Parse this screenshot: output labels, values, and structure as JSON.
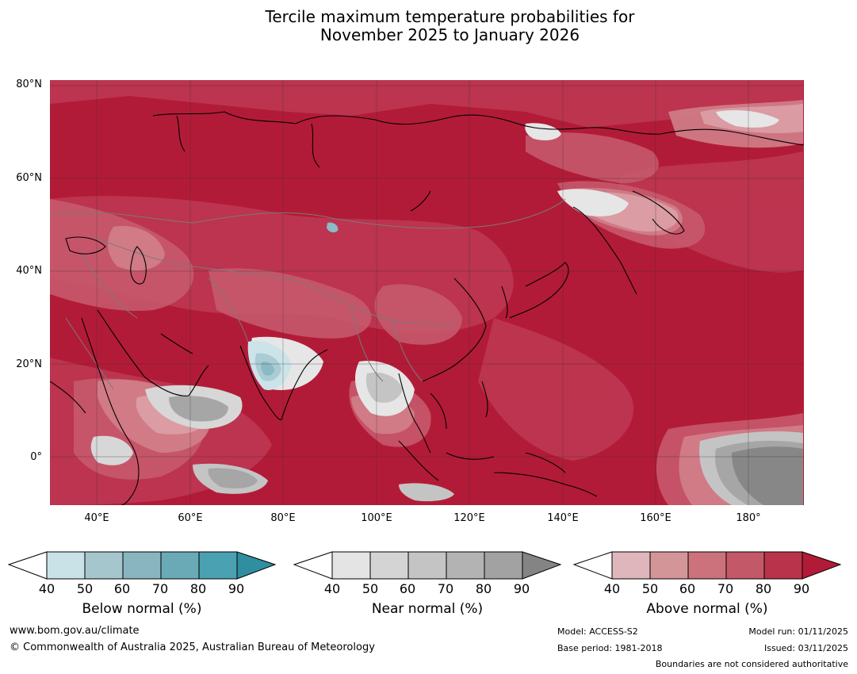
{
  "title": {
    "line1": "Tercile maximum temperature probabilities for",
    "line2": "November 2025 to January 2026"
  },
  "map": {
    "lat_labels": [
      "80°N",
      "60°N",
      "40°N",
      "20°N",
      "0°"
    ],
    "lon_labels": [
      "40°E",
      "60°E",
      "80°E",
      "100°E",
      "120°E",
      "140°E",
      "160°E",
      "180°"
    ],
    "colors": {
      "above_90": "#b21b37",
      "above_80": "#bd3650",
      "above_70": "#c7596c",
      "above_60": "#d07f8a",
      "above_50": "#dba0a6",
      "above_40": "#e6bfc1",
      "near_40": "#e6e6e6",
      "near_50": "#d7d7d7",
      "near_60": "#c4c4c4",
      "near_70": "#a6a6a6",
      "near_90": "#878787",
      "below_40": "#cce3ea",
      "below_50": "#a9ccd5",
      "below_60": "#8bb9c5"
    }
  },
  "legends": [
    {
      "label": "Below normal (%)",
      "ticks": [
        "40",
        "50",
        "60",
        "70",
        "80",
        "90"
      ],
      "colors": [
        "#c8e2e8",
        "#a6c6cd",
        "#88b5bf",
        "#6aaab7",
        "#4aa1b1",
        "#2f8ea0"
      ]
    },
    {
      "label": "Near normal (%)",
      "ticks": [
        "40",
        "50",
        "60",
        "70",
        "80",
        "90"
      ],
      "colors": [
        "#e4e4e4",
        "#d4d4d4",
        "#c4c4c4",
        "#b3b3b3",
        "#a2a2a2",
        "#848484"
      ]
    },
    {
      "label": "Above normal (%)",
      "ticks": [
        "40",
        "50",
        "60",
        "70",
        "80",
        "90"
      ],
      "colors": [
        "#deb6bb",
        "#d49598",
        "#cb727c",
        "#c35868",
        "#b9344b",
        "#b21b37"
      ]
    }
  ],
  "footer": {
    "website": "www.bom.gov.au/climate",
    "copyright": "© Commonwealth of Australia 2025, Australian Bureau of Meteorology",
    "model": "Model: ACCESS-S2",
    "base_period": "Base period: 1981-2018",
    "model_run": "Model run: 01/11/2025",
    "issued": "Issued: 03/11/2025",
    "disclaimer": "Boundaries are not considered authoritative"
  }
}
